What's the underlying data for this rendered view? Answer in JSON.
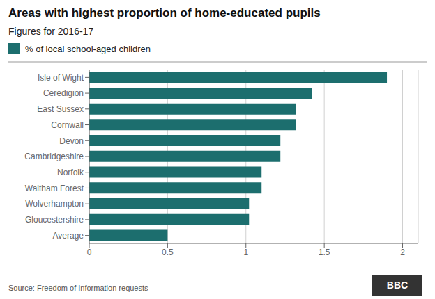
{
  "chart_data": {
    "type": "bar",
    "orientation": "horizontal",
    "title": "Areas with highest proportion of home-educated pupils",
    "subtitle": "Figures for 2016-17",
    "source": "Source: Freedom of Information requests",
    "annotations": [
      "BBC"
    ],
    "categories": [
      "Average",
      "Gloucestershire",
      "Wolverhampton",
      "Waltham Forest",
      "Norfolk",
      "Cambridgeshire",
      "Devon",
      "Cornwall",
      "East Sussex",
      "Ceredigion",
      "Isle of Wight"
    ],
    "series": [
      {
        "name": "% of local school-aged children",
        "color": "#1c6e6e",
        "values": [
          0.5,
          1.02,
          1.02,
          1.1,
          1.1,
          1.22,
          1.22,
          1.32,
          1.32,
          1.42,
          1.9
        ]
      }
    ],
    "xlim": [
      0,
      2.1
    ],
    "xticks": [
      0,
      0.5,
      1,
      1.5,
      2
    ],
    "grid": true,
    "legend": "upper left"
  }
}
